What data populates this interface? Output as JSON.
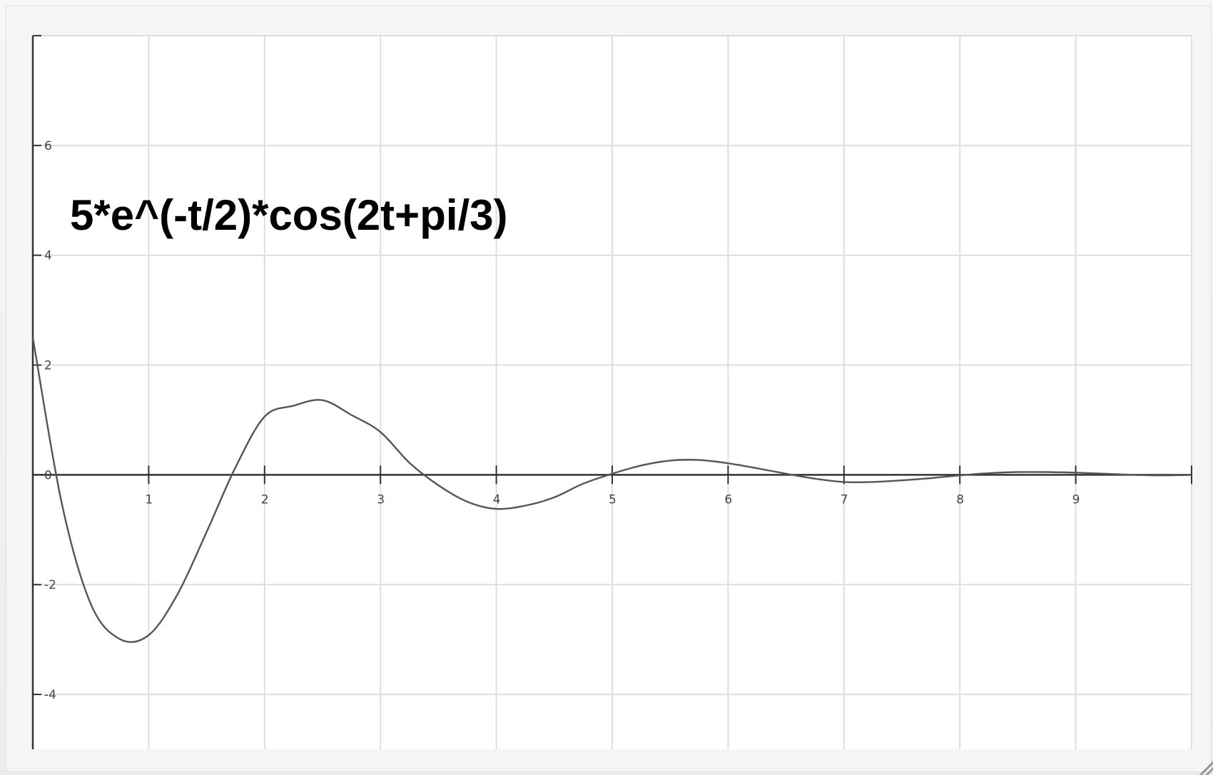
{
  "chart_data": {
    "type": "line",
    "title": "5*e^(-t/2)*cos(2t+pi/3)",
    "xlabel": "",
    "ylabel": "",
    "xlim": [
      0,
      10
    ],
    "ylim": [
      -5,
      8
    ],
    "grid": true,
    "x_ticks": [
      "1",
      "2",
      "3",
      "4",
      "5",
      "6",
      "7",
      "8",
      "9"
    ],
    "y_ticks": [
      "6",
      "4",
      "2",
      "0",
      "-2",
      "-4"
    ],
    "x_tick_values": [
      1,
      2,
      3,
      4,
      5,
      6,
      7,
      8,
      9
    ],
    "y_tick_values": [
      6,
      4,
      2,
      0,
      -2,
      -4
    ],
    "series": [
      {
        "x": [
          0,
          0.25,
          0.5,
          0.75,
          1.0,
          1.25,
          1.5,
          1.75,
          2.0,
          2.25,
          2.5,
          2.75,
          3.0,
          3.25,
          3.5,
          3.75,
          4.0,
          4.25,
          4.5,
          4.75,
          5.0,
          5.25,
          5.5,
          5.75,
          6.0,
          6.25,
          6.5,
          6.75,
          7.0,
          7.25,
          7.5,
          7.75,
          8.0,
          8.25,
          8.5,
          8.75,
          9.0,
          9.25,
          9.5,
          9.75,
          10.0
        ],
        "y": [
          2.5,
          -0.52,
          -2.35,
          -2.99,
          -2.92,
          -2.17,
          -1.04,
          0.14,
          1.06,
          1.26,
          1.36,
          1.09,
          0.78,
          0.22,
          -0.19,
          -0.49,
          -0.62,
          -0.56,
          -0.41,
          -0.16,
          0.02,
          0.17,
          0.26,
          0.27,
          0.21,
          0.12,
          0.02,
          -0.07,
          -0.13,
          -0.13,
          -0.1,
          -0.06,
          -0.01,
          0.03,
          0.05,
          0.05,
          0.04,
          0.02,
          0.0,
          -0.01,
          0.0
        ]
      }
    ]
  }
}
